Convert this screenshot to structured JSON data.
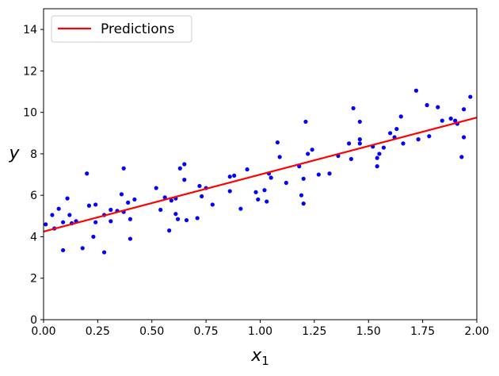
{
  "chart_data": {
    "type": "scatter",
    "xlabel_base": "x",
    "xlabel_sub": "1",
    "ylabel": "y",
    "xlim": [
      0,
      2
    ],
    "ylim": [
      0,
      15
    ],
    "xticks": [
      "0.00",
      "0.25",
      "0.50",
      "0.75",
      "1.00",
      "1.25",
      "1.50",
      "1.75",
      "2.00"
    ],
    "yticks": [
      "0",
      "2",
      "4",
      "6",
      "8",
      "10",
      "12",
      "14"
    ],
    "grid": false,
    "legend": {
      "position": "top-left",
      "entries": [
        "Predictions"
      ]
    },
    "colors": {
      "points": "#0000ff",
      "line": "#ff0000"
    },
    "prediction_line": {
      "name": "Predictions",
      "x": [
        0,
        2
      ],
      "y": [
        4.25,
        9.75
      ]
    },
    "points": {
      "x": [
        0.01,
        0.04,
        0.05,
        0.07,
        0.09,
        0.09,
        0.11,
        0.12,
        0.13,
        0.15,
        0.18,
        0.2,
        0.21,
        0.23,
        0.24,
        0.24,
        0.28,
        0.28,
        0.31,
        0.31,
        0.34,
        0.36,
        0.37,
        0.37,
        0.39,
        0.4,
        0.4,
        0.42,
        0.52,
        0.54,
        0.56,
        0.58,
        0.59,
        0.61,
        0.61,
        0.62,
        0.63,
        0.65,
        0.65,
        0.66,
        0.71,
        0.72,
        0.73,
        0.75,
        0.78,
        0.86,
        0.86,
        0.88,
        0.91,
        0.94,
        0.98,
        0.99,
        1.02,
        1.03,
        1.04,
        1.05,
        1.08,
        1.09,
        1.12,
        1.18,
        1.19,
        1.2,
        1.2,
        1.21,
        1.22,
        1.24,
        1.27,
        1.32,
        1.36,
        1.41,
        1.42,
        1.43,
        1.46,
        1.46,
        1.46,
        1.52,
        1.54,
        1.54,
        1.55,
        1.57,
        1.6,
        1.62,
        1.63,
        1.65,
        1.66,
        1.72,
        1.73,
        1.77,
        1.78,
        1.82,
        1.84,
        1.88,
        1.9,
        1.91,
        1.93,
        1.94,
        1.94,
        1.97
      ],
      "y": [
        4.6,
        5.05,
        4.4,
        5.35,
        4.7,
        3.35,
        5.85,
        5.05,
        4.65,
        4.75,
        3.45,
        7.05,
        5.5,
        4.0,
        5.55,
        4.7,
        3.25,
        5.05,
        5.3,
        4.75,
        5.25,
        6.05,
        7.3,
        5.2,
        5.65,
        4.85,
        3.9,
        5.8,
        6.35,
        5.3,
        5.9,
        4.3,
        5.75,
        5.1,
        5.85,
        4.85,
        7.3,
        7.5,
        6.75,
        4.8,
        4.9,
        6.45,
        5.95,
        6.35,
        5.55,
        6.9,
        6.2,
        6.95,
        5.35,
        7.25,
        6.15,
        5.8,
        6.25,
        5.7,
        7.05,
        6.85,
        8.55,
        7.85,
        6.6,
        7.4,
        6.0,
        5.6,
        6.8,
        9.55,
        8.0,
        8.2,
        7.0,
        7.05,
        7.9,
        8.5,
        7.75,
        10.2,
        8.7,
        9.55,
        8.5,
        8.35,
        7.8,
        7.4,
        8.0,
        8.3,
        9.0,
        8.8,
        9.2,
        9.8,
        8.5,
        11.05,
        8.7,
        10.35,
        8.85,
        10.25,
        9.6,
        9.7,
        9.6,
        9.45,
        7.85,
        8.8,
        10.15,
        10.75
      ]
    }
  }
}
